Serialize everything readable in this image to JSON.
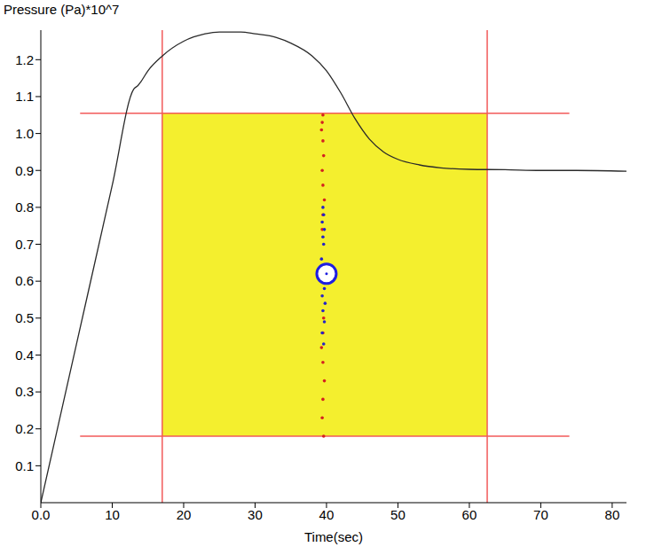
{
  "chart_data": {
    "type": "line",
    "y_title": "Pressure (Pa)*10^7",
    "x_title": "Time(sec)",
    "grid": false,
    "xlim": [
      0,
      82
    ],
    "ylim": [
      0,
      1.28
    ],
    "xticks": [
      {
        "value": 0,
        "label": "0.0"
      },
      10,
      20,
      30,
      40,
      50,
      60,
      70,
      80
    ],
    "yticks": [
      0.1,
      0.2,
      0.3,
      0.4,
      0.5,
      0.6,
      0.7,
      0.8,
      0.9,
      {
        "value": 1,
        "label": "1.0"
      },
      1.1,
      1.2
    ],
    "series": [
      {
        "color": "#2a2a2a",
        "x": [
          0,
          5,
          10,
          13,
          13.6,
          14,
          15,
          17,
          20,
          23,
          25,
          28,
          30,
          33,
          35,
          38,
          40,
          42,
          44,
          46,
          48,
          50,
          53,
          56,
          60,
          65,
          70,
          75,
          82
        ],
        "values": [
          0,
          0.43,
          0.86,
          1.12,
          1.13,
          1.14,
          1.17,
          1.21,
          1.25,
          1.27,
          1.275,
          1.275,
          1.27,
          1.26,
          1.245,
          1.21,
          1.17,
          1.11,
          1.04,
          0.985,
          0.95,
          0.93,
          0.915,
          0.907,
          0.903,
          0.902,
          0.9,
          0.9,
          0.898
        ]
      }
    ],
    "overlay": {
      "region": {
        "x": [
          17,
          62.5
        ],
        "y": [
          0.18,
          1.055
        ],
        "color": "#f4ef2e"
      },
      "hlines": [
        1.055,
        0.18
      ],
      "hline_x": [
        5.5,
        74
      ],
      "vlines": [
        17,
        62.5
      ],
      "line_color": "#f25a5a",
      "crack": {
        "color": "#d42020",
        "x": [
          39.6,
          39.4,
          39.5,
          39.7,
          39.5,
          39.3,
          39.5,
          39.6,
          39.4,
          39.5,
          39.7,
          39.5,
          39.4,
          39.6,
          39.5,
          39.3,
          39.4,
          39.5
        ],
        "y": [
          0.18,
          0.23,
          0.28,
          0.33,
          0.38,
          0.42,
          0.46,
          0.5,
          0.74,
          0.78,
          0.82,
          0.86,
          0.9,
          0.94,
          0.98,
          1.01,
          1.03,
          1.05
        ]
      },
      "damage": {
        "color": "#2424c8",
        "x": [
          39.6,
          39.4,
          39.7,
          39.5,
          39.8,
          39.4,
          39.6,
          39.5,
          39.7,
          39.4,
          39.6,
          39.5,
          39.3,
          39.7
        ],
        "y": [
          0.43,
          0.46,
          0.49,
          0.52,
          0.54,
          0.56,
          0.7,
          0.72,
          0.74,
          0.76,
          0.78,
          0.8,
          0.66,
          0.58
        ]
      },
      "hole": {
        "x": 40,
        "y": 0.62,
        "color": "#1e1ee0"
      }
    }
  }
}
